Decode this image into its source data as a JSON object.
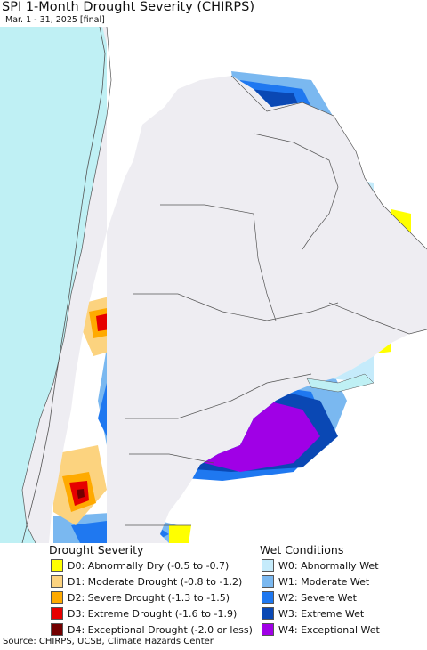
{
  "header": {
    "title": "SPI 1-Month Drought Severity (CHIRPS)",
    "subtitle": "Mar. 1 - 31, 2025 [final]"
  },
  "colors": {
    "ocean": "#bff0f4",
    "outside_land": "#eeedf2",
    "no_anomaly": "#ffffff",
    "border": "#555555"
  },
  "legend": {
    "drought_title": "Drought Severity",
    "wet_title": "Wet Conditions",
    "drought_items": [
      {
        "label": "D0: Abnormally Dry (-0.5 to -0.7)",
        "color": "#ffff00"
      },
      {
        "label": "D1: Moderate Drought (-0.8 to -1.2)",
        "color": "#fcd37f"
      },
      {
        "label": "D2: Severe Drought (-1.3 to -1.5)",
        "color": "#ffaa00"
      },
      {
        "label": "D3: Extreme Drought (-1.6 to -1.9)",
        "color": "#e60000"
      },
      {
        "label": "D4: Exceptional Drought (-2.0 or less)",
        "color": "#730000"
      }
    ],
    "wet_items": [
      {
        "label": "W0: Abnormally Wet",
        "color": "#c5ebfb"
      },
      {
        "label": "W1: Moderate Wet",
        "color": "#7ab8f0"
      },
      {
        "label": "W2: Severe Wet",
        "color": "#1f78f0"
      },
      {
        "label": "W3: Extreme Wet",
        "color": "#0a48b4"
      },
      {
        "label": "W4: Exceptional Wet",
        "color": "#a000e6"
      }
    ]
  },
  "footer": {
    "source": "Source: CHIRPS, UCSB, Climate Hazards Center"
  }
}
